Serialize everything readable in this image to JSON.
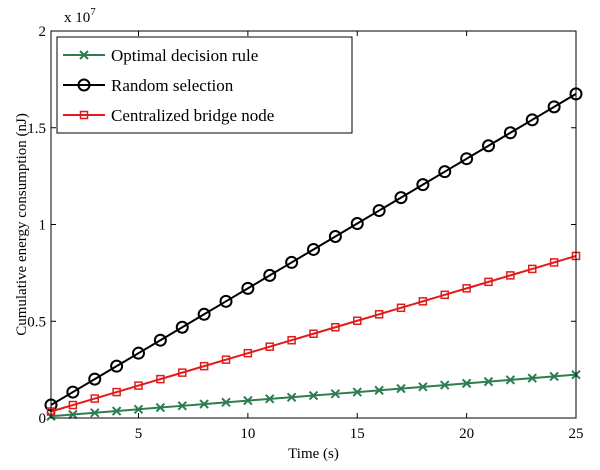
{
  "chart_data": {
    "type": "line",
    "xlabel": "Time (s)",
    "ylabel": "Cumulative energy consumption (nJ)",
    "xlim": [
      1,
      25
    ],
    "ylim": [
      0,
      20000000
    ],
    "xticks": [
      5,
      10,
      15,
      20,
      25
    ],
    "xtick_labels": [
      "5",
      "10",
      "15",
      "20",
      "25"
    ],
    "yticks": [
      0,
      5000000,
      10000000,
      15000000,
      20000000
    ],
    "ytick_labels": [
      "0",
      "0.5",
      "1",
      "1.5",
      "2"
    ],
    "y_multiplier": {
      "base": "x 10",
      "exponent": "7"
    },
    "grid": false,
    "legend_position": "top-left",
    "x": [
      1,
      2,
      3,
      4,
      5,
      6,
      7,
      8,
      9,
      10,
      11,
      12,
      13,
      14,
      15,
      16,
      17,
      18,
      19,
      20,
      21,
      22,
      23,
      24,
      25
    ],
    "series": [
      {
        "name": "Optimal decision rule",
        "color": "#2e7d4f",
        "marker": "x",
        "values": [
          90000,
          180000,
          270000,
          360000,
          450000,
          540000,
          630000,
          720000,
          810000,
          900000,
          990000,
          1070000,
          1160000,
          1250000,
          1340000,
          1430000,
          1520000,
          1610000,
          1700000,
          1790000,
          1880000,
          1970000,
          2060000,
          2150000,
          2240000
        ]
      },
      {
        "name": "Random selection",
        "color": "#000000",
        "marker": "circle",
        "values": [
          670000,
          1340000,
          2010000,
          2680000,
          3350000,
          4020000,
          4690000,
          5360000,
          6030000,
          6700000,
          7370000,
          8040000,
          8710000,
          9380000,
          10050000,
          10720000,
          11390000,
          12060000,
          12730000,
          13400000,
          14070000,
          14740000,
          15410000,
          16080000,
          16750000
        ]
      },
      {
        "name": "Centralized bridge node",
        "color": "#e01b1b",
        "marker": "square",
        "values": [
          335000,
          670000,
          1005000,
          1340000,
          1675000,
          2010000,
          2345000,
          2680000,
          3015000,
          3350000,
          3685000,
          4020000,
          4355000,
          4690000,
          5025000,
          5360000,
          5695000,
          6030000,
          6365000,
          6700000,
          7035000,
          7370000,
          7705000,
          8040000,
          8375000
        ]
      }
    ]
  }
}
